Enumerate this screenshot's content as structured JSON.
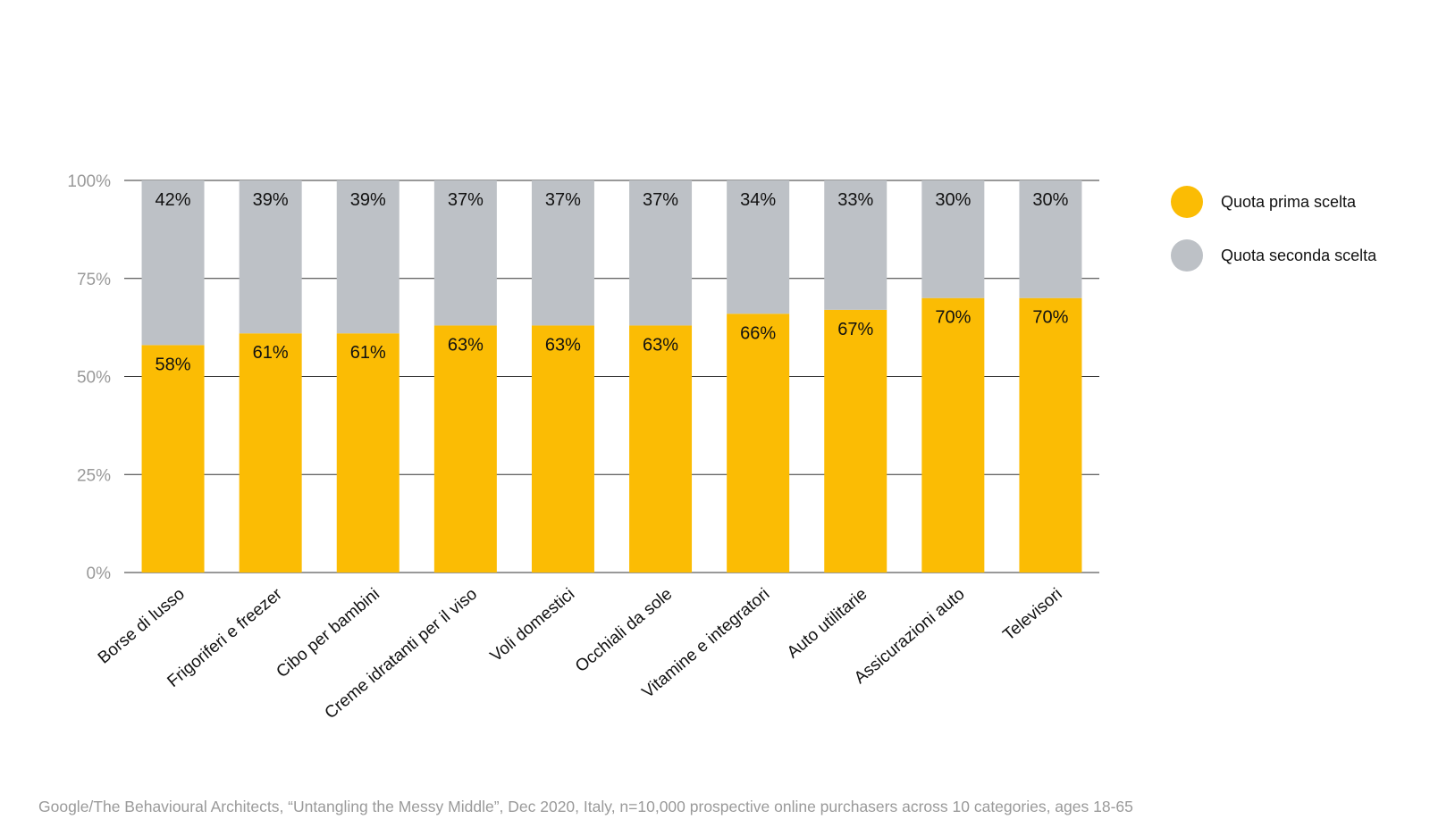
{
  "chart_data": {
    "type": "bar",
    "stacked": true,
    "categories": [
      "Borse di lusso",
      "Frigoriferi e freezer",
      "Cibo per bambini",
      "Creme idratanti per il viso",
      "Voli domestici",
      "Occhiali da sole",
      "Vitamine e integratori",
      "Auto utilitarie",
      "Assicurazioni auto",
      "Televisori"
    ],
    "series": [
      {
        "name": "Quota prima scelta",
        "values": [
          58,
          61,
          61,
          63,
          63,
          63,
          66,
          67,
          70,
          70
        ],
        "labels": [
          "58%",
          "61%",
          "61%",
          "63%",
          "63%",
          "63%",
          "66%",
          "67%",
          "70%",
          "70%"
        ]
      },
      {
        "name": "Quota seconda scelta",
        "values": [
          42,
          39,
          39,
          37,
          37,
          37,
          34,
          33,
          30,
          30
        ],
        "labels": [
          "42%",
          "39%",
          "39%",
          "37%",
          "37%",
          "37%",
          "34%",
          "33%",
          "30%",
          "30%"
        ]
      }
    ],
    "colors": [
      "#FBBC04",
      "#BDC1C6"
    ],
    "ylim": [
      0,
      100
    ],
    "yticks": [
      0,
      25,
      50,
      75,
      100
    ],
    "ytick_labels": [
      "0%",
      "25%",
      "50%",
      "75%",
      "100%"
    ],
    "grid": true,
    "legend_position": "top-right",
    "title": "",
    "xlabel": "",
    "ylabel": ""
  },
  "footer": {
    "source": "Google/The Behavioural Architects, “Untangling the Messy Middle”, Dec 2020,  Italy, n=10,000 prospective online purchasers across 10 categories, ages 18-65"
  }
}
